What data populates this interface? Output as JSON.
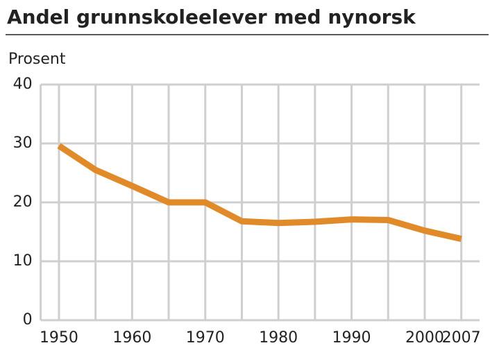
{
  "chart_data": {
    "type": "line",
    "title": "Andel grunnskoleelever med nynorsk",
    "y_label": "Prosent",
    "categories": [
      "1950",
      null,
      "1960",
      null,
      "1970",
      null,
      "1980",
      null,
      "1990",
      null,
      "2000",
      "2007"
    ],
    "series": [
      {
        "name": "Andel",
        "color": "#e08a2a",
        "values": [
          29.6,
          25.5,
          22.8,
          20,
          20,
          16.8,
          16.5,
          16.7,
          17.1,
          17,
          15.2,
          13.8
        ]
      }
    ],
    "ylim": [
      0,
      40
    ],
    "yticks": [
      0,
      10,
      20,
      30,
      40
    ],
    "grid": true
  }
}
